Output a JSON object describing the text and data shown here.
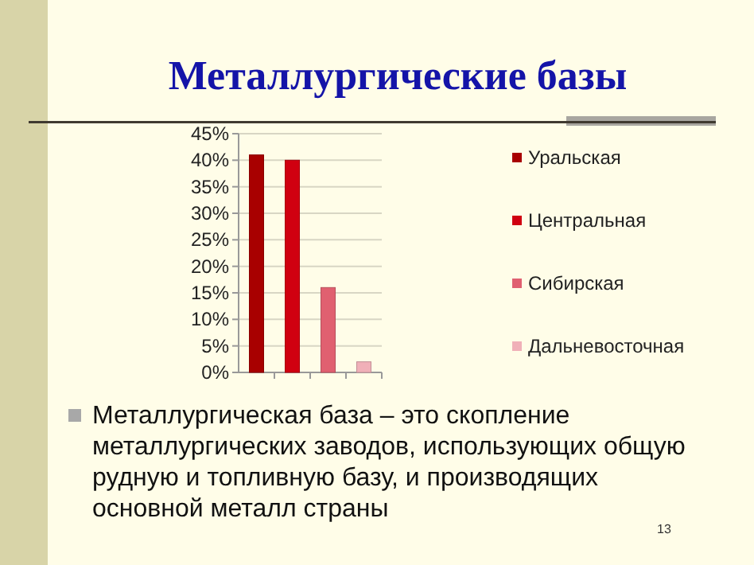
{
  "chart_data": {
    "type": "bar",
    "title": "Металлургические базы",
    "categories": [
      null
    ],
    "series": [
      {
        "name": "Уральская",
        "color": "#a80000",
        "values": [
          41
        ]
      },
      {
        "name": "Центральная",
        "color": "#d00010",
        "values": [
          40
        ]
      },
      {
        "name": "Сибирская",
        "color": "#e06070",
        "values": [
          16
        ]
      },
      {
        "name": "Дальневосточная",
        "color": "#f0b0b8",
        "values": [
          2
        ]
      }
    ],
    "ylim": [
      0,
      45
    ],
    "yticks": [
      {
        "value": 0,
        "label": "0%"
      },
      {
        "value": 5,
        "label": "5%"
      },
      {
        "value": 10,
        "label": "10%"
      },
      {
        "value": 15,
        "label": "15%"
      },
      {
        "value": 20,
        "label": "20%"
      },
      {
        "value": 25,
        "label": "25%"
      },
      {
        "value": 30,
        "label": "30%"
      },
      {
        "value": 35,
        "label": "35%"
      },
      {
        "value": 40,
        "label": "40%"
      },
      {
        "value": 45,
        "label": "45%"
      }
    ],
    "grid": "y",
    "legend": "right",
    "annotations": [
      "Металлургическая база – это скопление металлургических заводов, использующих общую рудную и топливную базу, и производящих основной металл страны",
      "13"
    ]
  }
}
